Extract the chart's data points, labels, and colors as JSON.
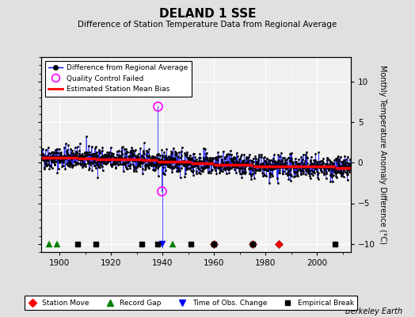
{
  "title": "DELAND 1 SSE",
  "subtitle": "Difference of Station Temperature Data from Regional Average",
  "ylabel": "Monthly Temperature Anomaly Difference (°C)",
  "xlabel_credit": "Berkeley Earth",
  "xlim": [
    1893,
    2013
  ],
  "ylim": [
    -11,
    13
  ],
  "yticks": [
    -10,
    -5,
    0,
    5,
    10
  ],
  "xticks": [
    1900,
    1920,
    1940,
    1960,
    1980,
    2000
  ],
  "bg_color": "#e0e0e0",
  "plot_bg_color": "#f0f0f0",
  "grid_color": "#ffffff",
  "seed": 42,
  "station_moves": [
    1960,
    1975,
    1985
  ],
  "record_gaps": [
    1896,
    1899,
    1944
  ],
  "time_obs_changes": [
    1940
  ],
  "empirical_breaks": [
    1907,
    1914,
    1932,
    1938,
    1951,
    1960,
    1975,
    2007
  ],
  "qc_years": [
    1938.2,
    1939.5
  ],
  "qc_vals": [
    7.0,
    -3.5
  ],
  "bias_segments": [
    {
      "x_start": 1893,
      "x_end": 1907,
      "bias": 0.6
    },
    {
      "x_start": 1907,
      "x_end": 1914,
      "bias": 0.5
    },
    {
      "x_start": 1914,
      "x_end": 1932,
      "bias": 0.4
    },
    {
      "x_start": 1932,
      "x_end": 1938,
      "bias": 0.3
    },
    {
      "x_start": 1938,
      "x_end": 1951,
      "bias": 0.1
    },
    {
      "x_start": 1951,
      "x_end": 1960,
      "bias": -0.1
    },
    {
      "x_start": 1960,
      "x_end": 1975,
      "bias": -0.3
    },
    {
      "x_start": 1975,
      "x_end": 2007,
      "bias": -0.5
    },
    {
      "x_start": 2007,
      "x_end": 2013,
      "bias": -0.7
    }
  ]
}
